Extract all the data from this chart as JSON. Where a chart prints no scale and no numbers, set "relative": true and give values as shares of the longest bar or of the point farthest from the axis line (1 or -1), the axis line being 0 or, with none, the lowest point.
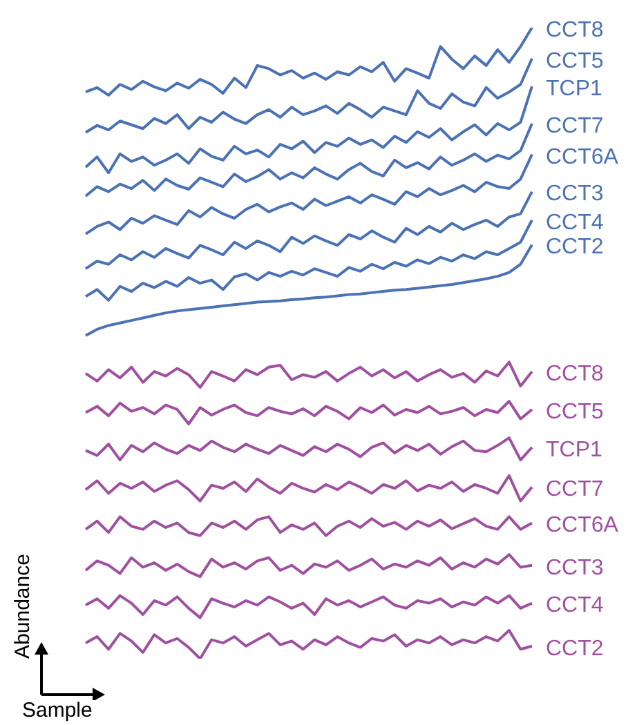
{
  "chart_data": {
    "type": "line",
    "relative": true,
    "xlabel": "Sample",
    "ylabel": "Abundance",
    "categories": [
      null,
      null,
      null,
      null,
      null,
      null,
      null,
      null,
      null,
      null,
      null,
      null,
      null,
      null,
      null,
      null,
      null,
      null,
      null,
      null,
      null,
      null,
      null,
      null,
      null,
      null,
      null,
      null,
      null,
      null,
      null,
      null,
      null,
      null,
      null,
      null,
      null,
      null,
      null,
      null
    ],
    "series": [
      {
        "name": "CCT8",
        "color": "#4a72b5",
        "values": [
          0.898,
          0.905,
          0.893,
          0.91,
          0.902,
          0.915,
          0.906,
          0.9,
          0.912,
          0.904,
          0.918,
          0.91,
          0.896,
          0.92,
          0.905,
          0.94,
          0.935,
          0.925,
          0.932,
          0.92,
          0.928,
          0.918,
          0.93,
          0.925,
          0.938,
          0.93,
          0.945,
          0.915,
          0.935,
          0.928,
          0.92,
          0.97,
          0.95,
          0.935,
          0.955,
          0.94,
          0.965,
          0.945,
          0.97,
          1.0
        ]
      },
      {
        "name": "CCT5",
        "color": "#4a72b5",
        "values": [
          0.834,
          0.845,
          0.838,
          0.852,
          0.846,
          0.84,
          0.856,
          0.848,
          0.862,
          0.84,
          0.858,
          0.85,
          0.866,
          0.855,
          0.848,
          0.862,
          0.87,
          0.858,
          0.874,
          0.862,
          0.868,
          0.876,
          0.864,
          0.88,
          0.87,
          0.858,
          0.874,
          0.868,
          0.862,
          0.9,
          0.88,
          0.872,
          0.895,
          0.882,
          0.876,
          0.905,
          0.888,
          0.898,
          0.91,
          0.951
        ]
      },
      {
        "name": "TCP1",
        "color": "#4a72b5",
        "values": [
          0.779,
          0.795,
          0.77,
          0.8,
          0.788,
          0.795,
          0.782,
          0.79,
          0.8,
          0.785,
          0.808,
          0.796,
          0.79,
          0.812,
          0.8,
          0.806,
          0.795,
          0.815,
          0.808,
          0.82,
          0.802,
          0.818,
          0.812,
          0.825,
          0.815,
          0.822,
          0.81,
          0.828,
          0.818,
          0.835,
          0.826,
          0.84,
          0.822,
          0.835,
          0.846,
          0.83,
          0.848,
          0.838,
          0.85,
          0.907
        ]
      },
      {
        "name": "CCT7",
        "color": "#4a72b5",
        "values": [
          0.733,
          0.748,
          0.74,
          0.752,
          0.745,
          0.758,
          0.742,
          0.76,
          0.75,
          0.744,
          0.762,
          0.755,
          0.748,
          0.768,
          0.756,
          0.764,
          0.775,
          0.76,
          0.77,
          0.762,
          0.778,
          0.768,
          0.76,
          0.775,
          0.785,
          0.772,
          0.765,
          0.79,
          0.778,
          0.786,
          0.776,
          0.795,
          0.782,
          0.79,
          0.8,
          0.788,
          0.798,
          0.792,
          0.805,
          0.848
        ]
      },
      {
        "name": "CCT6A",
        "color": "#4a72b5",
        "values": [
          0.673,
          0.685,
          0.692,
          0.68,
          0.698,
          0.69,
          0.702,
          0.695,
          0.688,
          0.71,
          0.7,
          0.715,
          0.705,
          0.698,
          0.712,
          0.72,
          0.708,
          0.716,
          0.722,
          0.712,
          0.728,
          0.718,
          0.725,
          0.732,
          0.722,
          0.735,
          0.728,
          0.72,
          0.74,
          0.732,
          0.745,
          0.735,
          0.742,
          0.75,
          0.74,
          0.755,
          0.748,
          0.745,
          0.76,
          0.799
        ]
      },
      {
        "name": "CCT3",
        "color": "#4a72b5",
        "values": [
          0.618,
          0.63,
          0.625,
          0.64,
          0.632,
          0.645,
          0.636,
          0.65,
          0.642,
          0.635,
          0.655,
          0.648,
          0.64,
          0.66,
          0.65,
          0.662,
          0.655,
          0.645,
          0.668,
          0.658,
          0.67,
          0.662,
          0.655,
          0.672,
          0.665,
          0.678,
          0.668,
          0.66,
          0.682,
          0.672,
          0.685,
          0.676,
          0.69,
          0.68,
          0.688,
          0.695,
          0.685,
          0.7,
          0.705,
          0.74
        ]
      },
      {
        "name": "CCT4",
        "color": "#4a72b5",
        "values": [
          0.574,
          0.585,
          0.568,
          0.59,
          0.582,
          0.595,
          0.588,
          0.598,
          0.59,
          0.604,
          0.595,
          0.6,
          0.585,
          0.605,
          0.61,
          0.6,
          0.612,
          0.606,
          0.614,
          0.608,
          0.618,
          0.612,
          0.606,
          0.62,
          0.614,
          0.625,
          0.618,
          0.628,
          0.622,
          0.632,
          0.626,
          0.636,
          0.63,
          0.64,
          0.634,
          0.645,
          0.64,
          0.65,
          0.66,
          0.695
        ]
      },
      {
        "name": "CCT2",
        "color": "#4a72b5",
        "values": [
          0.512,
          0.522,
          0.528,
          0.532,
          0.536,
          0.54,
          0.544,
          0.548,
          0.551,
          0.553,
          0.555,
          0.557,
          0.559,
          0.561,
          0.563,
          0.565,
          0.566,
          0.567,
          0.569,
          0.57,
          0.572,
          0.573,
          0.575,
          0.577,
          0.578,
          0.58,
          0.582,
          0.584,
          0.585,
          0.587,
          0.589,
          0.591,
          0.593,
          0.596,
          0.599,
          0.602,
          0.606,
          0.612,
          0.625,
          0.656
        ]
      },
      {
        "name": "CCT8",
        "color": "#a050a0",
        "values": [
          0.452,
          0.44,
          0.458,
          0.445,
          0.462,
          0.438,
          0.455,
          0.448,
          0.46,
          0.45,
          0.43,
          0.455,
          0.448,
          0.44,
          0.458,
          0.45,
          0.462,
          0.465,
          0.442,
          0.45,
          0.446,
          0.455,
          0.44,
          0.452,
          0.462,
          0.448,
          0.458,
          0.445,
          0.455,
          0.44,
          0.45,
          0.458,
          0.446,
          0.452,
          0.438,
          0.456,
          0.448,
          0.47,
          0.432,
          0.455
        ]
      },
      {
        "name": "CCT5",
        "color": "#a050a0",
        "values": [
          0.39,
          0.4,
          0.385,
          0.405,
          0.392,
          0.398,
          0.388,
          0.402,
          0.395,
          0.372,
          0.398,
          0.386,
          0.395,
          0.402,
          0.39,
          0.385,
          0.398,
          0.392,
          0.388,
          0.396,
          0.385,
          0.4,
          0.392,
          0.38,
          0.398,
          0.39,
          0.402,
          0.386,
          0.395,
          0.39,
          0.4,
          0.388,
          0.392,
          0.398,
          0.385,
          0.395,
          0.39,
          0.408,
          0.38,
          0.395
        ]
      },
      {
        "name": "TCP1",
        "color": "#a050a0",
        "values": [
          0.33,
          0.322,
          0.34,
          0.315,
          0.338,
          0.328,
          0.342,
          0.332,
          0.325,
          0.338,
          0.33,
          0.345,
          0.335,
          0.328,
          0.34,
          0.332,
          0.325,
          0.338,
          0.33,
          0.322,
          0.336,
          0.328,
          0.34,
          0.332,
          0.32,
          0.335,
          0.342,
          0.326,
          0.338,
          0.33,
          0.34,
          0.324,
          0.336,
          0.345,
          0.33,
          0.328,
          0.338,
          0.35,
          0.315,
          0.335
        ]
      },
      {
        "name": "CCT7",
        "color": "#a050a0",
        "values": [
          0.268,
          0.282,
          0.262,
          0.278,
          0.27,
          0.28,
          0.265,
          0.275,
          0.282,
          0.268,
          0.25,
          0.275,
          0.27,
          0.28,
          0.265,
          0.285,
          0.272,
          0.262,
          0.278,
          0.27,
          0.264,
          0.276,
          0.268,
          0.28,
          0.272,
          0.262,
          0.276,
          0.27,
          0.282,
          0.266,
          0.275,
          0.27,
          0.28,
          0.265,
          0.276,
          0.27,
          0.262,
          0.29,
          0.25,
          0.272
        ]
      },
      {
        "name": "CCT6A",
        "color": "#a050a0",
        "values": [
          0.205,
          0.218,
          0.2,
          0.225,
          0.21,
          0.205,
          0.218,
          0.208,
          0.215,
          0.2,
          0.195,
          0.215,
          0.208,
          0.218,
          0.205,
          0.22,
          0.225,
          0.2,
          0.212,
          0.205,
          0.215,
          0.195,
          0.21,
          0.218,
          0.208,
          0.222,
          0.21,
          0.216,
          0.205,
          0.218,
          0.21,
          0.22,
          0.206,
          0.214,
          0.222,
          0.21,
          0.205,
          0.225,
          0.205,
          0.215
        ]
      },
      {
        "name": "CCT3",
        "color": "#a050a0",
        "values": [
          0.14,
          0.155,
          0.148,
          0.135,
          0.16,
          0.145,
          0.152,
          0.14,
          0.15,
          0.138,
          0.13,
          0.158,
          0.145,
          0.152,
          0.142,
          0.155,
          0.16,
          0.14,
          0.148,
          0.135,
          0.15,
          0.145,
          0.155,
          0.14,
          0.148,
          0.158,
          0.142,
          0.15,
          0.145,
          0.155,
          0.148,
          0.16,
          0.142,
          0.152,
          0.145,
          0.158,
          0.15,
          0.165,
          0.145,
          0.148
        ]
      },
      {
        "name": "CCT4",
        "color": "#a050a0",
        "values": [
          0.085,
          0.095,
          0.08,
          0.1,
          0.088,
          0.07,
          0.092,
          0.085,
          0.098,
          0.08,
          0.065,
          0.095,
          0.088,
          0.082,
          0.092,
          0.085,
          0.098,
          0.09,
          0.08,
          0.088,
          0.07,
          0.095,
          0.085,
          0.092,
          0.082,
          0.09,
          0.098,
          0.085,
          0.08,
          0.092,
          0.088,
          0.095,
          0.082,
          0.09,
          0.085,
          0.098,
          0.088,
          0.1,
          0.08,
          0.088
        ]
      },
      {
        "name": "CCT2",
        "color": "#a050a0",
        "values": [
          0.025,
          0.035,
          0.015,
          0.04,
          0.028,
          0.01,
          0.038,
          0.025,
          0.032,
          0.018,
          0.0,
          0.03,
          0.025,
          0.035,
          0.02,
          0.03,
          0.04,
          0.022,
          0.028,
          0.015,
          0.03,
          0.022,
          0.035,
          0.025,
          0.018,
          0.032,
          0.028,
          0.038,
          0.02,
          0.03,
          0.025,
          0.035,
          0.022,
          0.03,
          0.025,
          0.035,
          0.028,
          0.045,
          0.015,
          0.02
        ]
      }
    ]
  }
}
